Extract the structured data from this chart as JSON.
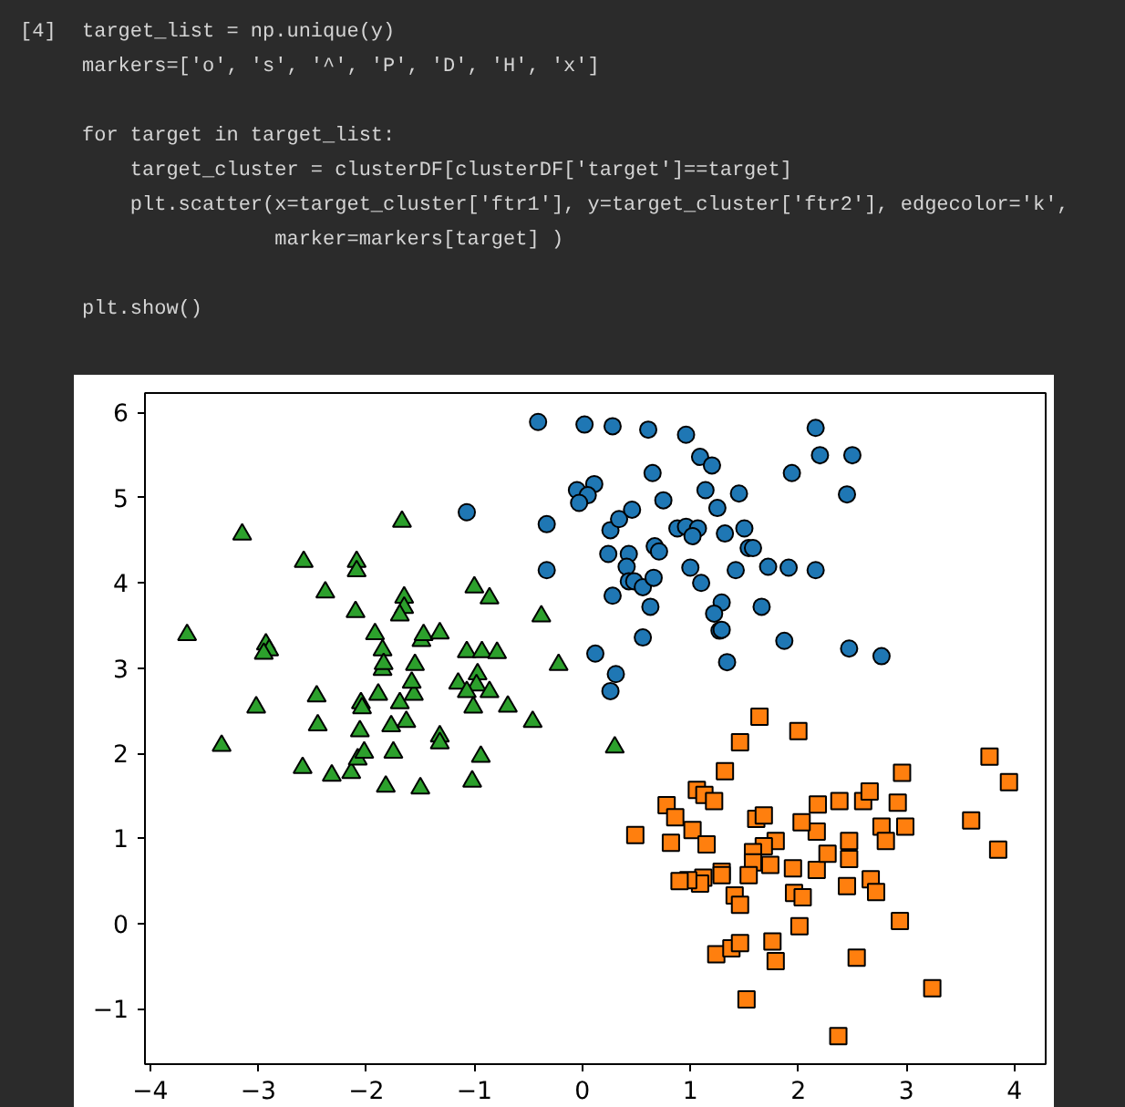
{
  "chart_data": {
    "type": "scatter",
    "annotations": [
      "[4]",
      "target_list = np.unique(y)",
      "markers=['o', 's', '^', 'P', 'D', 'H', 'x']",
      "for target in target_list:",
      "    target_cluster = clusterDF[clusterDF['target']==target]",
      "    plt.scatter(x=target_cluster['ftr1'], y=target_cluster['ftr2'], edgecolor='k',",
      "                marker=markers[target] )",
      "plt.show()"
    ],
    "xlim": [
      -4.05,
      4.29
    ],
    "ylim": [
      -1.65,
      6.23
    ],
    "xticks": [
      -4,
      -3,
      -2,
      -1,
      0,
      1,
      2,
      3,
      4
    ],
    "yticks": [
      -1,
      0,
      1,
      2,
      3,
      4,
      5,
      6
    ],
    "grid": false,
    "series": [
      {
        "color": "#1f77b4",
        "marker": "circle",
        "x": [
          -0.41,
          0.02,
          0.28,
          0.61,
          0.96,
          2.16,
          2.2,
          2.5,
          1.94,
          2.45,
          1.09,
          1.2,
          0.65,
          -0.05,
          0.11,
          0.05,
          -0.03,
          -0.33,
          0.26,
          0.34,
          0.46,
          0.75,
          1.14,
          1.45,
          1.25,
          0.88,
          0.96,
          1.07,
          1.02,
          1.32,
          1.5,
          1.54,
          1.58,
          0.24,
          0.43,
          0.67,
          0.71,
          -0.33,
          0.41,
          0.43,
          0.48,
          0.56,
          0.66,
          0.28,
          1.0,
          1.1,
          1.42,
          1.72,
          1.91,
          2.16,
          0.63,
          1.29,
          1.22,
          1.66,
          1.27,
          1.29,
          0.56,
          1.87,
          2.47,
          2.77,
          0.12,
          0.31,
          0.26,
          1.34,
          -1.07
        ],
        "values": [
          5.89,
          5.86,
          5.84,
          5.8,
          5.74,
          5.82,
          5.5,
          5.5,
          5.29,
          5.04,
          5.48,
          5.38,
          5.29,
          5.09,
          5.16,
          5.03,
          4.94,
          4.69,
          4.62,
          4.75,
          4.86,
          4.97,
          5.09,
          5.05,
          4.88,
          4.64,
          4.66,
          4.64,
          4.55,
          4.58,
          4.64,
          4.41,
          4.41,
          4.34,
          4.34,
          4.43,
          4.37,
          4.15,
          4.19,
          4.02,
          4.02,
          3.95,
          4.06,
          3.85,
          4.18,
          4.0,
          4.15,
          4.19,
          4.18,
          4.15,
          3.72,
          3.77,
          3.64,
          3.72,
          3.44,
          3.45,
          3.36,
          3.32,
          3.23,
          3.14,
          3.17,
          2.93,
          2.73,
          3.07,
          4.83
        ]
      },
      {
        "color": "#ff7f0e",
        "marker": "square",
        "x": [
          1.64,
          2.0,
          1.46,
          1.32,
          1.06,
          1.13,
          1.22,
          0.78,
          0.86,
          0.49,
          0.82,
          1.02,
          1.15,
          1.61,
          1.68,
          1.79,
          1.68,
          1.58,
          1.58,
          1.74,
          1.54,
          1.29,
          1.29,
          1.12,
          1.09,
          0.98,
          0.9,
          1.41,
          1.46,
          1.95,
          1.96,
          2.04,
          2.17,
          2.27,
          2.17,
          2.03,
          2.18,
          2.38,
          2.6,
          2.66,
          2.92,
          2.96,
          2.77,
          2.81,
          2.99,
          2.47,
          2.47,
          2.45,
          2.67,
          2.72,
          2.01,
          2.94,
          1.24,
          1.38,
          1.46,
          1.76,
          1.79,
          2.54,
          3.24,
          1.52,
          2.37,
          3.77,
          3.95,
          3.6,
          3.85
        ],
        "values": [
          2.43,
          2.26,
          2.13,
          1.79,
          1.57,
          1.51,
          1.44,
          1.39,
          1.25,
          1.04,
          0.95,
          1.1,
          0.93,
          1.23,
          1.27,
          0.97,
          0.91,
          0.84,
          0.72,
          0.69,
          0.57,
          0.61,
          0.57,
          0.54,
          0.47,
          0.51,
          0.5,
          0.33,
          0.22,
          0.65,
          0.36,
          0.31,
          0.63,
          0.82,
          1.08,
          1.19,
          1.4,
          1.44,
          1.44,
          1.55,
          1.42,
          1.77,
          1.14,
          0.97,
          1.14,
          0.97,
          0.76,
          0.44,
          0.52,
          0.37,
          -0.03,
          0.03,
          -0.36,
          -0.29,
          -0.23,
          -0.21,
          -0.44,
          -0.4,
          -0.76,
          -0.89,
          -1.32,
          1.96,
          1.66,
          1.21,
          0.87
        ]
      },
      {
        "color": "#2ca02c",
        "marker": "triangle",
        "x": [
          -3.66,
          -3.15,
          -3.34,
          -3.02,
          -2.93,
          -2.9,
          -2.95,
          -2.58,
          -2.38,
          -2.46,
          -2.45,
          -2.59,
          -2.32,
          -2.14,
          -2.1,
          -2.09,
          -2.09,
          -1.92,
          -1.85,
          -1.85,
          -1.84,
          -1.89,
          -2.05,
          -2.04,
          -2.06,
          -2.08,
          -2.02,
          -1.77,
          -1.75,
          -1.82,
          -1.69,
          -1.63,
          -1.56,
          -1.55,
          -1.58,
          -1.5,
          -1.49,
          -1.47,
          -1.67,
          -1.65,
          -1.65,
          -1.69,
          -1.32,
          -1.32,
          -1.32,
          -1.07,
          -0.93,
          -0.79,
          -1.0,
          -0.86,
          -0.97,
          -0.98,
          -1.15,
          -1.07,
          -1.01,
          -0.86,
          -0.69,
          -1.02,
          -0.94,
          -0.46,
          -0.38,
          -0.22,
          0.3
        ],
        "values": [
          3.39,
          4.57,
          2.09,
          2.54,
          3.28,
          3.21,
          3.17,
          4.25,
          3.89,
          2.67,
          2.33,
          1.83,
          1.74,
          1.77,
          3.66,
          4.25,
          4.14,
          3.4,
          3.21,
          2.98,
          3.05,
          2.69,
          2.59,
          2.53,
          2.26,
          1.93,
          2.01,
          2.32,
          2.01,
          1.61,
          2.59,
          2.37,
          2.69,
          3.04,
          2.83,
          1.59,
          3.32,
          3.39,
          4.72,
          3.83,
          3.71,
          3.62,
          3.41,
          2.2,
          2.12,
          3.19,
          3.19,
          3.18,
          3.95,
          3.82,
          2.93,
          2.8,
          2.82,
          2.72,
          2.54,
          2.72,
          2.55,
          1.67,
          1.96,
          2.37,
          3.61,
          3.04,
          2.07
        ]
      }
    ]
  }
}
